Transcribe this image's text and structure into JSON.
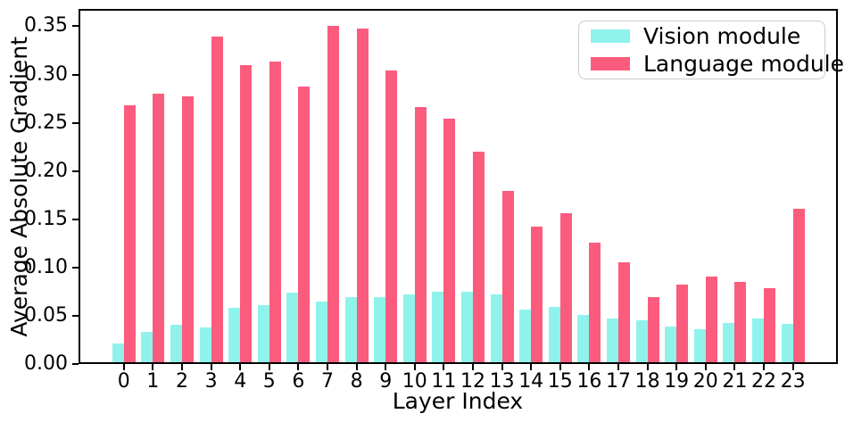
{
  "chart_data": {
    "type": "bar",
    "title": "",
    "xlabel": "Layer Index",
    "ylabel": "Average Absolute Gradient",
    "categories": [
      "0",
      "1",
      "2",
      "3",
      "4",
      "5",
      "6",
      "7",
      "8",
      "9",
      "10",
      "11",
      "12",
      "13",
      "14",
      "15",
      "16",
      "17",
      "18",
      "19",
      "20",
      "21",
      "22",
      "23"
    ],
    "series": [
      {
        "name": "Vision module",
        "color": "#8FF3EC",
        "values": [
          0.021,
          0.033,
          0.041,
          0.038,
          0.058,
          0.061,
          0.074,
          0.065,
          0.069,
          0.069,
          0.072,
          0.075,
          0.075,
          0.072,
          0.056,
          0.059,
          0.051,
          0.047,
          0.045,
          0.039,
          0.036,
          0.043,
          0.047,
          0.042
        ]
      },
      {
        "name": "Language module",
        "color": "#FB5C7D",
        "values": [
          0.268,
          0.28,
          0.277,
          0.339,
          0.31,
          0.313,
          0.288,
          0.35,
          0.348,
          0.304,
          0.266,
          0.254,
          0.22,
          0.179,
          0.142,
          0.156,
          0.126,
          0.105,
          0.069,
          0.082,
          0.091,
          0.085,
          0.079,
          0.161
        ]
      }
    ],
    "ylim": [
      0,
      0.368
    ],
    "yticks": [
      0,
      0.05,
      0.1,
      0.15,
      0.2,
      0.25,
      0.3,
      0.35
    ],
    "ytick_labels": [
      "0.00",
      "0.05",
      "0.10",
      "0.15",
      "0.20",
      "0.25",
      "0.30",
      "0.35"
    ],
    "legend_position": "upper right",
    "grid": false,
    "axis_color": "#000000",
    "background_color": "#ffffff"
  }
}
